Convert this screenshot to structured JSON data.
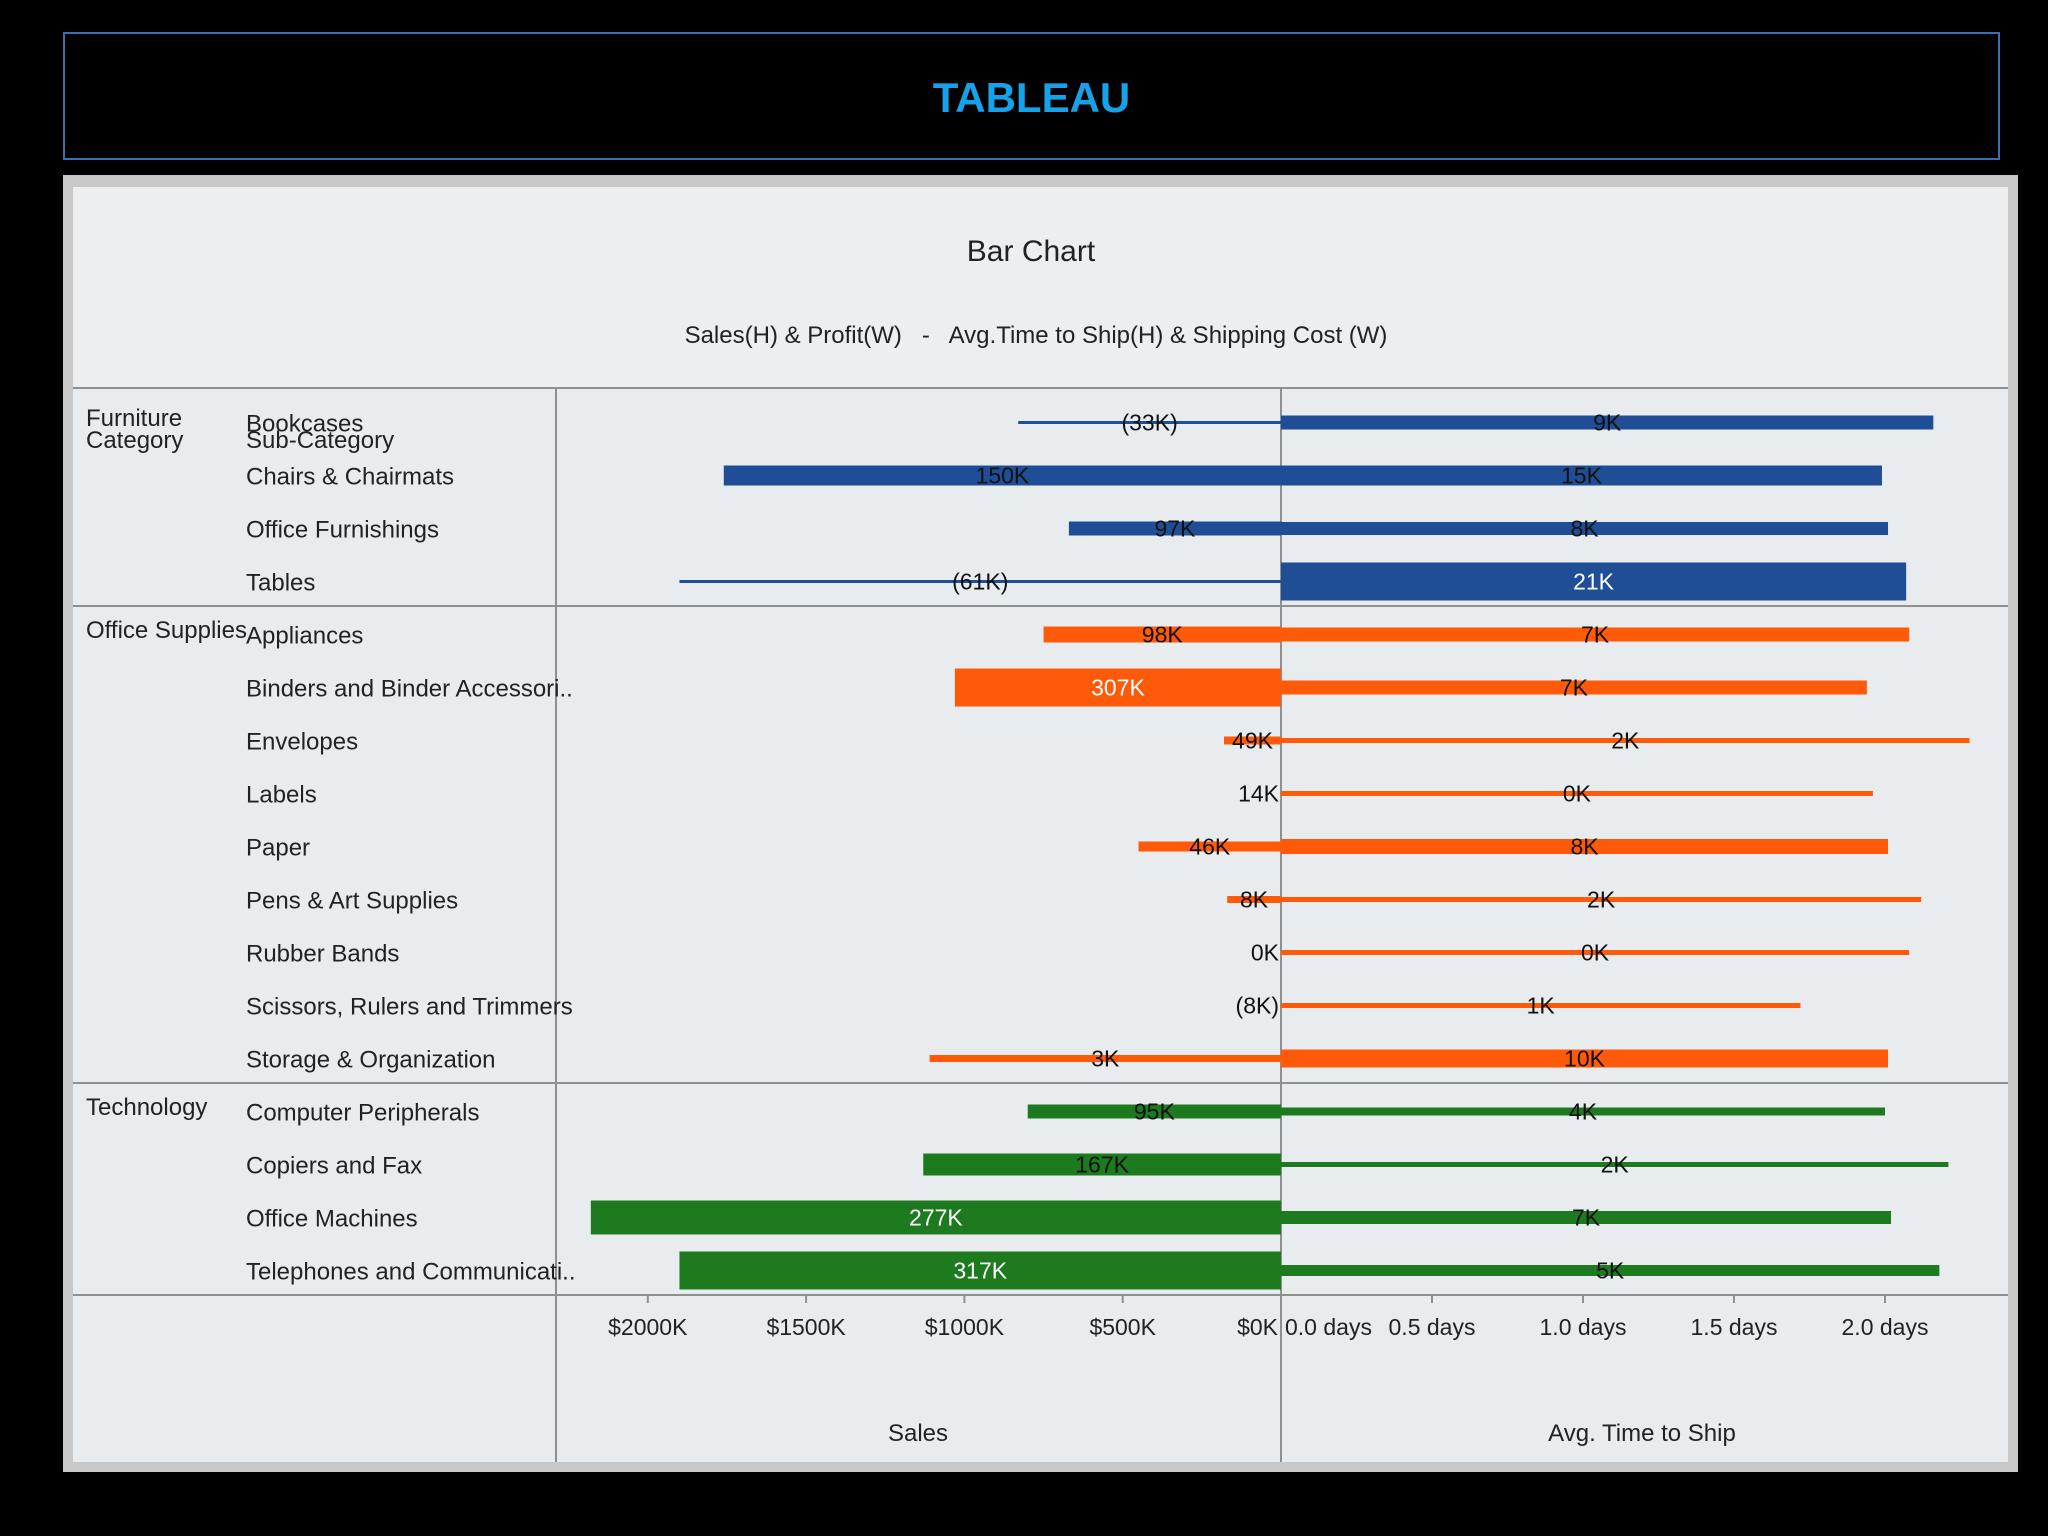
{
  "slide": {
    "title": "TABLEAU"
  },
  "chart_data": {
    "type": "bar",
    "title": "Bar Chart",
    "subtitle": "Sales(H) & Profit(W)   -   Avg.Time to Ship(H) & Shipping Cost (W)",
    "headers": {
      "category": "Category",
      "subcategory": "Sub-Category"
    },
    "left_axis": {
      "label": "Sales",
      "ticks": [
        "$2000K",
        "$1500K",
        "$1000K",
        "$500K",
        "$0K"
      ],
      "tick_values": [
        2000,
        1500,
        1000,
        500,
        0
      ],
      "range": [
        0,
        2290
      ],
      "unit": "K$"
    },
    "right_axis": {
      "label": "Avg. Time to Ship",
      "ticks": [
        "0.0 days",
        "0.5 days",
        "1.0 days",
        "1.5 days",
        "2.0 days"
      ],
      "tick_values": [
        0,
        0.5,
        1.0,
        1.5,
        2.0
      ],
      "range": [
        0,
        2.4
      ],
      "unit": "days"
    },
    "colors": {
      "Furniture": "#1f4e96",
      "Office Supplies": "#ff5a0a",
      "Technology": "#1e7a1e"
    },
    "categories": [
      {
        "name": "Furniture",
        "rows": [
          {
            "sub": "Bookcases",
            "sales": 830,
            "profit_label": "(33K)",
            "profit_width": 3,
            "ship_days": 2.16,
            "ship_cost_label": "9K",
            "ship_width": 14
          },
          {
            "sub": "Chairs & Chairmats",
            "sales": 1760,
            "profit_label": "150K",
            "profit_width": 20,
            "ship_days": 1.99,
            "ship_cost_label": "15K",
            "ship_width": 20
          },
          {
            "sub": "Office Furnishings",
            "sales": 670,
            "profit_label": "97K",
            "profit_width": 14,
            "ship_days": 2.01,
            "ship_cost_label": "8K",
            "ship_width": 13
          },
          {
            "sub": "Tables",
            "sales": 1900,
            "profit_label": "(61K)",
            "profit_width": 3,
            "ship_days": 2.07,
            "ship_cost_label": "21K",
            "ship_width": 38
          }
        ]
      },
      {
        "name": "Office Supplies",
        "rows": [
          {
            "sub": "Appliances",
            "sales": 750,
            "profit_label": "98K",
            "profit_width": 16,
            "ship_days": 2.08,
            "ship_cost_label": "7K",
            "ship_width": 14
          },
          {
            "sub": "Binders and Binder Accessori..",
            "sales": 1030,
            "profit_label": "307K",
            "profit_width": 38,
            "ship_days": 1.94,
            "ship_cost_label": "7K",
            "ship_width": 14
          },
          {
            "sub": "Envelopes",
            "sales": 180,
            "profit_label": "49K",
            "profit_width": 8,
            "ship_days": 2.28,
            "ship_cost_label": "2K",
            "ship_width": 5
          },
          {
            "sub": "Labels",
            "sales": 0,
            "profit_label": "14K",
            "profit_width": 3,
            "ship_days": 1.96,
            "ship_cost_label": "0K",
            "ship_width": 5
          },
          {
            "sub": "Paper",
            "sales": 450,
            "profit_label": "46K",
            "profit_width": 10,
            "ship_days": 2.01,
            "ship_cost_label": "8K",
            "ship_width": 15
          },
          {
            "sub": "Pens & Art Supplies",
            "sales": 170,
            "profit_label": "8K",
            "profit_width": 7,
            "ship_days": 2.12,
            "ship_cost_label": "2K",
            "ship_width": 5
          },
          {
            "sub": "Rubber Bands",
            "sales": 0,
            "profit_label": "0K",
            "profit_width": 3,
            "ship_days": 2.08,
            "ship_cost_label": "0K",
            "ship_width": 5
          },
          {
            "sub": "Scissors, Rulers and Trimmers",
            "sales": 0,
            "profit_label": "(8K)",
            "profit_width": 3,
            "ship_days": 1.72,
            "ship_cost_label": "1K",
            "ship_width": 5
          },
          {
            "sub": "Storage & Organization",
            "sales": 1110,
            "profit_label": "3K",
            "profit_width": 7,
            "ship_days": 2.01,
            "ship_cost_label": "10K",
            "ship_width": 18
          }
        ]
      },
      {
        "name": "Technology",
        "rows": [
          {
            "sub": "Computer Peripherals",
            "sales": 800,
            "profit_label": "95K",
            "profit_width": 14,
            "ship_days": 2.0,
            "ship_cost_label": "4K",
            "ship_width": 8
          },
          {
            "sub": "Copiers and Fax",
            "sales": 1130,
            "profit_label": "167K",
            "profit_width": 22,
            "ship_days": 2.21,
            "ship_cost_label": "2K",
            "ship_width": 5
          },
          {
            "sub": "Office Machines",
            "sales": 2180,
            "profit_label": "277K",
            "profit_width": 34,
            "ship_days": 2.02,
            "ship_cost_label": "7K",
            "ship_width": 13
          },
          {
            "sub": "Telephones and Communicati..",
            "sales": 1900,
            "profit_label": "317K",
            "profit_width": 38,
            "ship_days": 2.18,
            "ship_cost_label": "5K",
            "ship_width": 11
          }
        ]
      }
    ]
  }
}
